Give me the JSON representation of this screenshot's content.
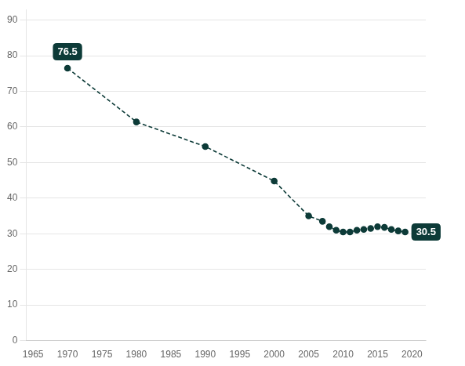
{
  "chart_data": {
    "type": "line",
    "x": [
      1970,
      1980,
      1990,
      2000,
      2005,
      2007,
      2008,
      2009,
      2010,
      2011,
      2012,
      2013,
      2014,
      2015,
      2016,
      2017,
      2018,
      2019
    ],
    "values": [
      76.5,
      61.4,
      54.5,
      44.8,
      35.0,
      33.5,
      32.0,
      31.0,
      30.5,
      30.5,
      31.0,
      31.2,
      31.5,
      32.0,
      31.8,
      31.2,
      30.8,
      30.5
    ],
    "color": "#0d3b38",
    "line_style": "dashed",
    "marker": "circle",
    "xlim": [
      1964,
      2022
    ],
    "ylim": [
      0,
      93
    ],
    "xticks": [
      1965,
      1970,
      1975,
      1980,
      1985,
      1990,
      1995,
      2000,
      2005,
      2010,
      2015,
      2020
    ],
    "yticks": [
      0,
      10,
      20,
      30,
      40,
      50,
      60,
      70,
      80,
      90
    ],
    "grid": "y",
    "annotations": [
      {
        "x": 1970,
        "y": 76.5,
        "text": "76.5"
      },
      {
        "x": 2019,
        "y": 30.5,
        "text": "30.5"
      }
    ]
  }
}
